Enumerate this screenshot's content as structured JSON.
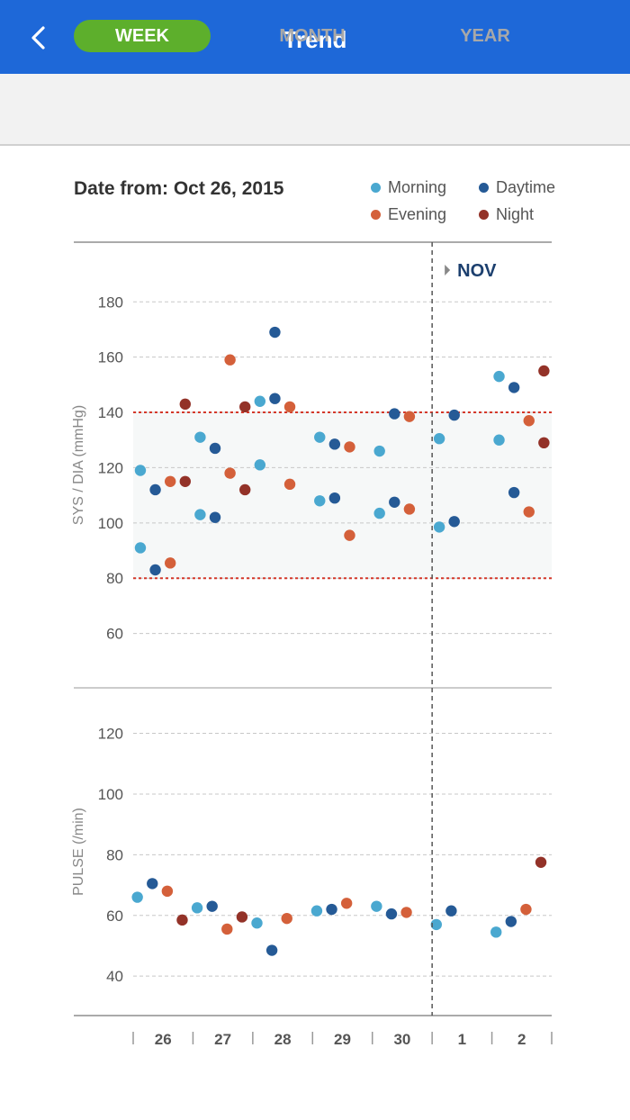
{
  "header": {
    "title": "Trend",
    "back_icon": "chevron-left-icon"
  },
  "tabs": [
    {
      "label": "WEEK",
      "active": true
    },
    {
      "label": "MONTH",
      "active": false
    },
    {
      "label": "YEAR",
      "active": false
    }
  ],
  "date_label": "Date from: Oct 26, 2015",
  "legend": [
    {
      "name": "Morning",
      "color": "#4aa8d0"
    },
    {
      "name": "Daytime",
      "color": "#255a96"
    },
    {
      "name": "Evening",
      "color": "#d4603a"
    },
    {
      "name": "Night",
      "color": "#933228"
    }
  ],
  "month_marker": "NOV",
  "x_labels": [
    "26",
    "27",
    "28",
    "29",
    "30",
    "1",
    "2"
  ],
  "chart_data": [
    {
      "type": "scatter",
      "ylabel": "SYS / DIA  (mmHg)",
      "yticks": [
        60,
        80,
        100,
        120,
        140,
        160,
        180
      ],
      "ylim": [
        40,
        198
      ],
      "xlim": [
        0,
        7
      ],
      "reference_band": [
        80,
        140
      ],
      "month_boundary_x": 5,
      "series": [
        {
          "name": "Morning",
          "color": "#4aa8d0",
          "points": [
            [
              0.12,
              119
            ],
            [
              0.12,
              91
            ],
            [
              1.12,
              131
            ],
            [
              1.12,
              103
            ],
            [
              2.12,
              144
            ],
            [
              2.12,
              121
            ],
            [
              3.12,
              131
            ],
            [
              3.12,
              108
            ],
            [
              4.12,
              126
            ],
            [
              4.12,
              103.5
            ],
            [
              5.12,
              130.5
            ],
            [
              5.12,
              98.5
            ],
            [
              6.12,
              153
            ],
            [
              6.12,
              130
            ]
          ]
        },
        {
          "name": "Daytime",
          "color": "#255a96",
          "points": [
            [
              0.37,
              112
            ],
            [
              0.37,
              83
            ],
            [
              1.37,
              127
            ],
            [
              1.37,
              102
            ],
            [
              2.37,
              169
            ],
            [
              2.37,
              145
            ],
            [
              3.37,
              128.5
            ],
            [
              3.37,
              109
            ],
            [
              4.37,
              139.5
            ],
            [
              4.37,
              107.5
            ],
            [
              5.37,
              139
            ],
            [
              5.37,
              100.5
            ],
            [
              6.37,
              149
            ],
            [
              6.37,
              111
            ]
          ]
        },
        {
          "name": "Evening",
          "color": "#d4603a",
          "points": [
            [
              0.62,
              115
            ],
            [
              0.62,
              85.5
            ],
            [
              1.62,
              159
            ],
            [
              1.62,
              118
            ],
            [
              2.62,
              142
            ],
            [
              2.62,
              114
            ],
            [
              3.62,
              127.5
            ],
            [
              3.62,
              95.5
            ],
            [
              4.62,
              138.5
            ],
            [
              4.62,
              105
            ],
            [
              6.62,
              137
            ],
            [
              6.62,
              104
            ]
          ]
        },
        {
          "name": "Night",
          "color": "#933228",
          "points": [
            [
              0.87,
              143
            ],
            [
              0.87,
              115
            ],
            [
              1.87,
              142
            ],
            [
              1.87,
              112
            ],
            [
              6.87,
              155
            ],
            [
              6.87,
              129
            ]
          ]
        }
      ]
    },
    {
      "type": "scatter",
      "ylabel": "PULSE  (/min)",
      "yticks": [
        40,
        60,
        80,
        100,
        120
      ],
      "ylim": [
        27,
        135
      ],
      "xlim": [
        0,
        7
      ],
      "month_boundary_x": 5,
      "series": [
        {
          "name": "Morning",
          "color": "#4aa8d0",
          "points": [
            [
              0.07,
              66
            ],
            [
              1.07,
              62.5
            ],
            [
              2.07,
              57.5
            ],
            [
              3.07,
              61.5
            ],
            [
              4.07,
              63
            ],
            [
              5.07,
              57
            ],
            [
              6.07,
              54.5
            ]
          ]
        },
        {
          "name": "Daytime",
          "color": "#255a96",
          "points": [
            [
              0.32,
              70.5
            ],
            [
              1.32,
              63
            ],
            [
              2.32,
              48.5
            ],
            [
              3.32,
              62
            ],
            [
              4.32,
              60.5
            ],
            [
              5.32,
              61.5
            ],
            [
              6.32,
              58
            ]
          ]
        },
        {
          "name": "Evening",
          "color": "#d4603a",
          "points": [
            [
              0.57,
              68
            ],
            [
              1.57,
              55.5
            ],
            [
              2.57,
              59
            ],
            [
              3.57,
              64
            ],
            [
              4.57,
              61
            ],
            [
              6.57,
              62
            ]
          ]
        },
        {
          "name": "Night",
          "color": "#933228",
          "points": [
            [
              0.82,
              58.5
            ],
            [
              1.82,
              59.5
            ],
            [
              6.82,
              77.5
            ]
          ]
        }
      ]
    }
  ]
}
